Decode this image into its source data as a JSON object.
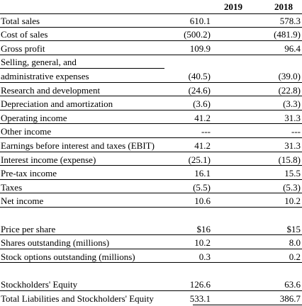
{
  "header": {
    "label": "",
    "col_2019": "2019",
    "col_2018": "2018"
  },
  "rows": [
    {
      "label": "Total sales",
      "v2019": "610.1",
      "v2018": "578.3"
    },
    {
      "label": "Cost of sales",
      "v2019": "(500.2)",
      "v2018": "(481.9)"
    },
    {
      "label": "Gross profit",
      "v2019": "109.9",
      "v2018": "96.4"
    },
    {
      "label": "Selling, general, and",
      "v2019": "",
      "v2018": ""
    },
    {
      "label": "administrative expenses",
      "v2019": "(40.5)",
      "v2018": "(39.0)"
    },
    {
      "label": "Research and development",
      "v2019": "(24.6)",
      "v2018": "(22.8)"
    },
    {
      "label": "Depreciation and amortization",
      "v2019": "(3.6)",
      "v2018": "(3.3)"
    },
    {
      "label": "Operating income",
      "v2019": "41.2",
      "v2018": "31.3"
    },
    {
      "label": "Other income",
      "v2019": "---",
      "v2018": "---"
    },
    {
      "label": "Earnings before interest and taxes (EBIT)",
      "v2019": "41.2",
      "v2018": "31.3"
    },
    {
      "label": "Interest income (expense)",
      "v2019": "(25.1)",
      "v2018": "(15.8)"
    },
    {
      "label": "Pre-tax income",
      "v2019": "16.1",
      "v2018": "15.5"
    },
    {
      "label": "Taxes",
      "v2019": "(5.5)",
      "v2018": "(5.3)"
    },
    {
      "label": "Net income",
      "v2019": "10.6",
      "v2018": "10.2"
    },
    {
      "label": "",
      "v2019": "",
      "v2018": ""
    },
    {
      "label": "Price per share",
      "v2019": "$16",
      "v2018": "$15"
    },
    {
      "label": "Shares outstanding (millions)",
      "v2019": "10.2",
      "v2018": "8.0"
    },
    {
      "label": "Stock options outstanding (millions)",
      "v2019": "0.3",
      "v2018": "0.2"
    },
    {
      "label": "",
      "v2019": "",
      "v2018": ""
    },
    {
      "label": "Stockholders' Equity",
      "v2019": "126.6",
      "v2018": "63.6"
    },
    {
      "label": "Total Liabilities and Stockholders' Equity",
      "v2019": "533.1",
      "v2018": "386.7"
    }
  ]
}
